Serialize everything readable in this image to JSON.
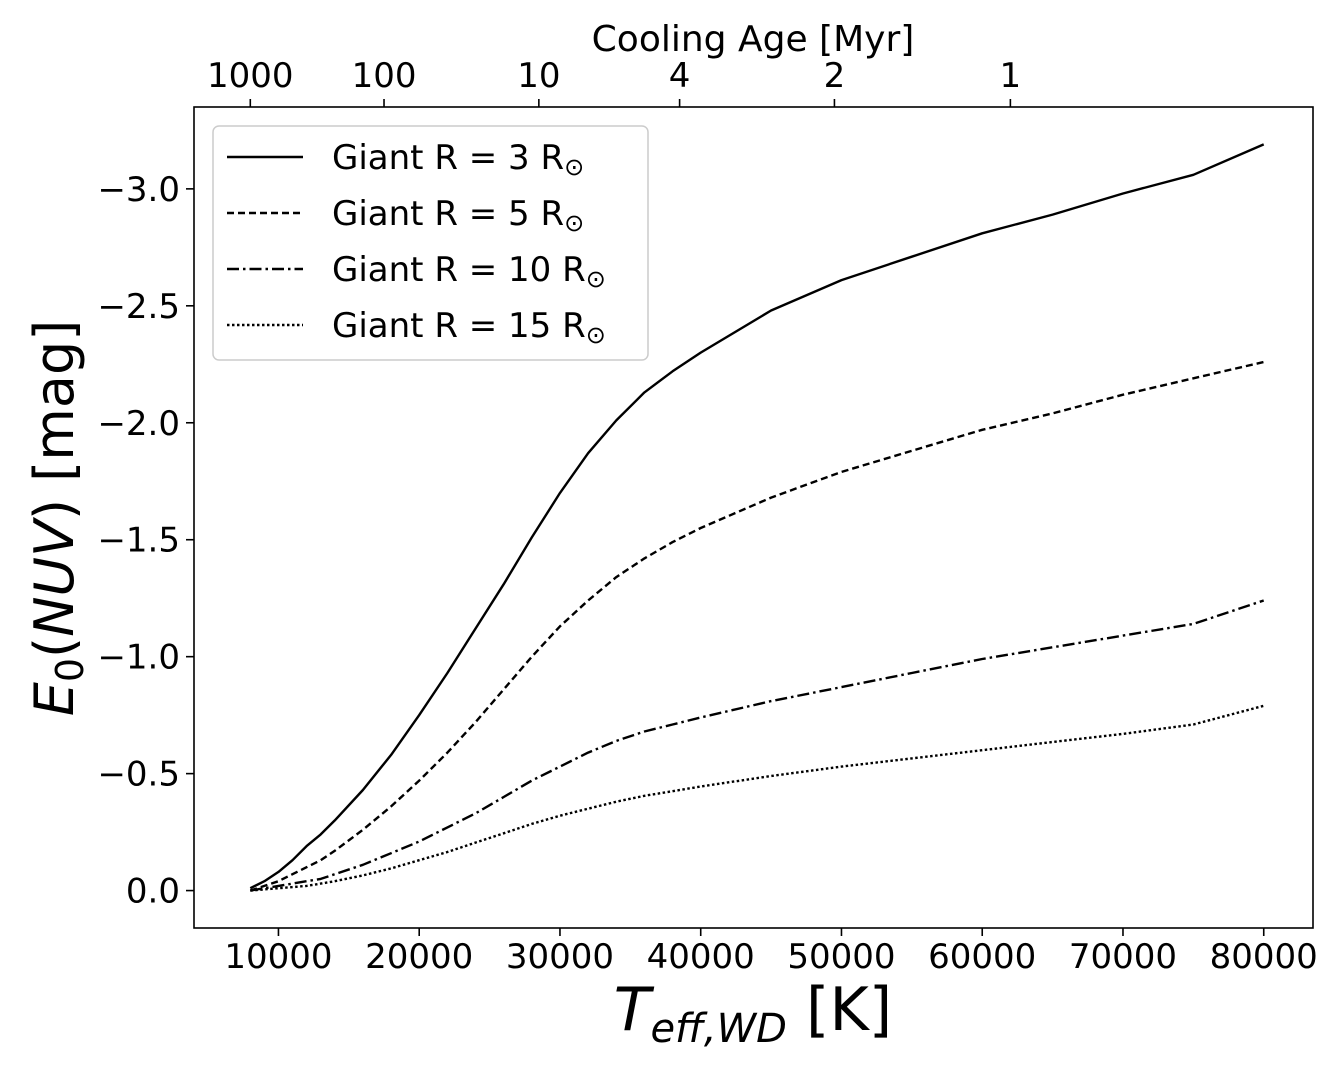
{
  "chart_data": {
    "type": "line",
    "xlabel": {
      "main": "T",
      "sub": "eff,WD",
      "unit": " [K]"
    },
    "ylabel": {
      "main": "E",
      "sub": "0",
      "paren": "(",
      "var": "NUV",
      "close": ")",
      "unit": " [mag]"
    },
    "top_axis_label": "Cooling Age [Myr]",
    "xlim": [
      4000,
      83500
    ],
    "ylim": [
      0.16,
      -3.35
    ],
    "y_inverted": true,
    "x_ticks": [
      10000,
      20000,
      30000,
      40000,
      50000,
      60000,
      70000,
      80000
    ],
    "x_tick_labels": [
      "10000",
      "20000",
      "30000",
      "40000",
      "50000",
      "60000",
      "70000",
      "80000"
    ],
    "y_ticks": [
      0.0,
      -0.5,
      -1.0,
      -1.5,
      -2.0,
      -2.5,
      -3.0
    ],
    "y_tick_labels": [
      "0.0",
      "−0.5",
      "−1.0",
      "−1.5",
      "−2.0",
      "−2.5",
      "−3.0"
    ],
    "top_ticks": [
      {
        "teff": 8000,
        "label": "1000"
      },
      {
        "teff": 17500,
        "label": "100"
      },
      {
        "teff": 28500,
        "label": "10"
      },
      {
        "teff": 38500,
        "label": "4"
      },
      {
        "teff": 49500,
        "label": "2"
      },
      {
        "teff": 62000,
        "label": "1"
      }
    ],
    "x": [
      8000,
      9000,
      10000,
      11000,
      12000,
      13000,
      14000,
      16000,
      18000,
      20000,
      22000,
      24000,
      26000,
      28000,
      30000,
      32000,
      34000,
      36000,
      38000,
      40000,
      45000,
      50000,
      55000,
      60000,
      65000,
      70000,
      75000,
      80000
    ],
    "series": [
      {
        "name": "Giant R = 3 R⊙",
        "prefix": "Giant R = 3 R",
        "style": "solid",
        "values": [
          -0.01,
          -0.04,
          -0.08,
          -0.13,
          -0.19,
          -0.24,
          -0.3,
          -0.43,
          -0.58,
          -0.75,
          -0.93,
          -1.12,
          -1.31,
          -1.51,
          -1.7,
          -1.87,
          -2.01,
          -2.13,
          -2.22,
          -2.3,
          -2.48,
          -2.61,
          -2.71,
          -2.81,
          -2.89,
          -2.98,
          -3.06,
          -3.19
        ]
      },
      {
        "name": "Giant R = 5 R⊙",
        "prefix": "Giant R = 5 R",
        "style": "dashed",
        "values": [
          0.0,
          -0.02,
          -0.04,
          -0.07,
          -0.1,
          -0.13,
          -0.17,
          -0.26,
          -0.36,
          -0.47,
          -0.59,
          -0.72,
          -0.86,
          -1.0,
          -1.13,
          -1.24,
          -1.34,
          -1.42,
          -1.49,
          -1.55,
          -1.68,
          -1.79,
          -1.88,
          -1.97,
          -2.04,
          -2.12,
          -2.19,
          -2.26
        ]
      },
      {
        "name": "Giant R = 10 R⊙",
        "prefix": "Giant R = 10 R",
        "style": "dashdot",
        "values": [
          0.0,
          -0.01,
          -0.02,
          -0.03,
          -0.04,
          -0.05,
          -0.07,
          -0.11,
          -0.16,
          -0.21,
          -0.27,
          -0.33,
          -0.4,
          -0.47,
          -0.53,
          -0.59,
          -0.64,
          -0.68,
          -0.71,
          -0.74,
          -0.81,
          -0.87,
          -0.93,
          -0.99,
          -1.04,
          -1.09,
          -1.14,
          -1.24
        ]
      },
      {
        "name": "Giant R = 15 R⊙",
        "prefix": "Giant R = 15 R",
        "style": "dotted",
        "values": [
          0.0,
          -0.005,
          -0.01,
          -0.015,
          -0.02,
          -0.03,
          -0.04,
          -0.065,
          -0.095,
          -0.13,
          -0.165,
          -0.205,
          -0.245,
          -0.285,
          -0.32,
          -0.35,
          -0.38,
          -0.405,
          -0.425,
          -0.445,
          -0.49,
          -0.53,
          -0.565,
          -0.6,
          -0.635,
          -0.67,
          -0.71,
          -0.79
        ]
      }
    ],
    "legend_location": "upper-left",
    "grid": false
  }
}
